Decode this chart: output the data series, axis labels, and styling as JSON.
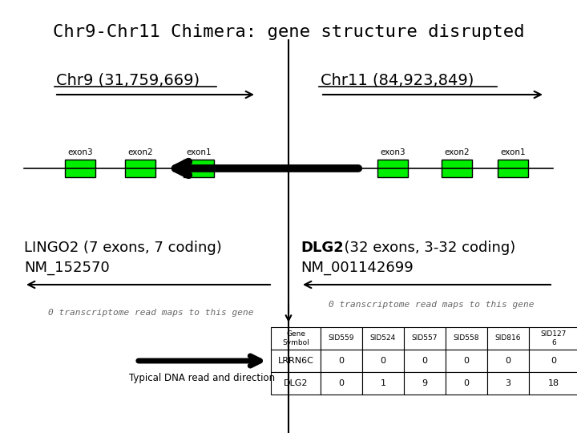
{
  "title": "Chr9-Chr11 Chimera: gene structure disrupted",
  "chr9_label": "Chr9 (31,759,669)",
  "chr11_label": "Chr11 (84,923,849)",
  "lingo2_line1": "LINGO2 (7 exons, 7 coding)",
  "lingo2_line2": "NM_152570",
  "dlg2_bold": "DLG2",
  "dlg2_line1_rest": "  (32 exons, 3-32 coding)",
  "dlg2_line2": "NM_001142699",
  "transcriptome_text": "0 transcriptome read maps to this gene",
  "typical_dna_text": "Typical DNA read and direction",
  "exon_color": "#00ee00",
  "table_headers": [
    "Gene\nSymbol",
    "SID559",
    "SID524",
    "SID557",
    "SID558",
    "SID816",
    "SID127\n6"
  ],
  "table_row1": [
    "LRRN6C",
    "0",
    "0",
    "0",
    "0",
    "0",
    "0"
  ],
  "table_row2": [
    "DLG2",
    "0",
    "1",
    "9",
    "0",
    "3",
    "18"
  ],
  "fig_w": 7.2,
  "fig_h": 5.4,
  "dpi": 100
}
